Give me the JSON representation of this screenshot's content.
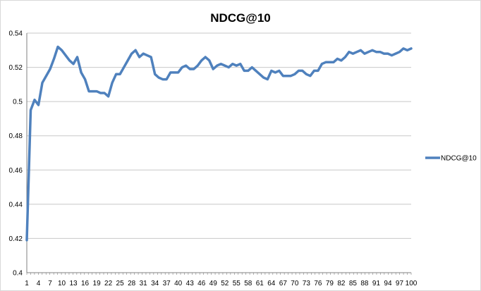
{
  "chart_data": {
    "type": "line",
    "title": "NDCG@10",
    "xlabel": "",
    "ylabel": "",
    "ylim": [
      0.4,
      0.54
    ],
    "yticks": [
      "0.4",
      "0.42",
      "0.44",
      "0.46",
      "0.48",
      "0.5",
      "0.52",
      "0.54"
    ],
    "xtick_labels": [
      "1",
      "4",
      "7",
      "10",
      "13",
      "16",
      "19",
      "22",
      "25",
      "28",
      "31",
      "34",
      "37",
      "40",
      "43",
      "46",
      "49",
      "52",
      "55",
      "58",
      "61",
      "64",
      "67",
      "70",
      "73",
      "76",
      "79",
      "82",
      "85",
      "88",
      "91",
      "94",
      "97",
      "100"
    ],
    "grid": "horizontal",
    "legend_position": "right",
    "series": [
      {
        "name": "NDCG@10",
        "color": "#4F81BD",
        "x": [
          1,
          2,
          3,
          4,
          5,
          6,
          7,
          8,
          9,
          10,
          11,
          12,
          13,
          14,
          15,
          16,
          17,
          18,
          19,
          20,
          21,
          22,
          23,
          24,
          25,
          26,
          27,
          28,
          29,
          30,
          31,
          32,
          33,
          34,
          35,
          36,
          37,
          38,
          39,
          40,
          41,
          42,
          43,
          44,
          45,
          46,
          47,
          48,
          49,
          50,
          51,
          52,
          53,
          54,
          55,
          56,
          57,
          58,
          59,
          60,
          61,
          62,
          63,
          64,
          65,
          66,
          67,
          68,
          69,
          70,
          71,
          72,
          73,
          74,
          75,
          76,
          77,
          78,
          79,
          80,
          81,
          82,
          83,
          84,
          85,
          86,
          87,
          88,
          89,
          90,
          91,
          92,
          93,
          94,
          95,
          96,
          97,
          98,
          99,
          100
        ],
        "values": [
          0.419,
          0.495,
          0.501,
          0.498,
          0.511,
          0.515,
          0.519,
          0.525,
          0.532,
          0.53,
          0.527,
          0.524,
          0.522,
          0.526,
          0.517,
          0.513,
          0.506,
          0.506,
          0.506,
          0.505,
          0.505,
          0.503,
          0.511,
          0.516,
          0.516,
          0.52,
          0.524,
          0.528,
          0.53,
          0.526,
          0.528,
          0.527,
          0.526,
          0.516,
          0.514,
          0.513,
          0.513,
          0.517,
          0.517,
          0.517,
          0.52,
          0.521,
          0.519,
          0.519,
          0.521,
          0.524,
          0.526,
          0.524,
          0.519,
          0.521,
          0.522,
          0.521,
          0.52,
          0.522,
          0.521,
          0.522,
          0.518,
          0.518,
          0.52,
          0.518,
          0.516,
          0.514,
          0.513,
          0.518,
          0.517,
          0.518,
          0.515,
          0.515,
          0.515,
          0.516,
          0.518,
          0.518,
          0.516,
          0.515,
          0.518,
          0.518,
          0.522,
          0.523,
          0.523,
          0.523,
          0.525,
          0.524,
          0.526,
          0.529,
          0.528,
          0.529,
          0.53,
          0.528,
          0.529,
          0.53,
          0.529,
          0.529,
          0.528,
          0.528,
          0.527,
          0.528,
          0.529,
          0.531,
          0.53,
          0.531
        ]
      }
    ]
  }
}
